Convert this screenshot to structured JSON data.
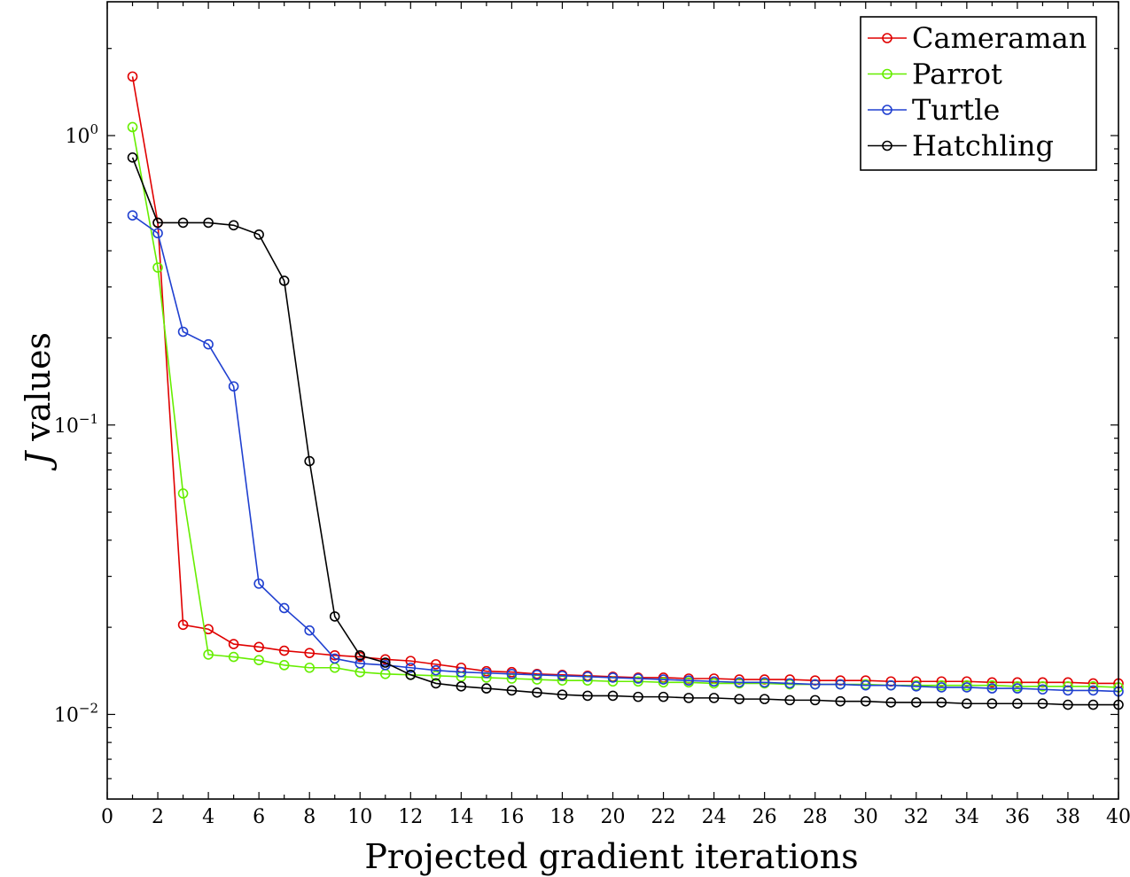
{
  "chart_data": {
    "type": "line",
    "xlabel": "Projected gradient iterations",
    "ylabel_var": "J",
    "ylabel_rest": " values",
    "xlim": [
      0,
      40
    ],
    "ylim": [
      0.0051,
      2.9
    ],
    "yscale": "log",
    "grid": false,
    "legend_position": "top-right",
    "x_ticks": [
      0,
      2,
      4,
      6,
      8,
      10,
      12,
      14,
      16,
      18,
      20,
      22,
      24,
      26,
      28,
      30,
      32,
      34,
      36,
      38,
      40
    ],
    "y_ticks": [
      {
        "value": 1,
        "base": "10",
        "exp": "0"
      },
      {
        "value": 0.1,
        "base": "10",
        "exp": "−1"
      },
      {
        "value": 0.01,
        "base": "10",
        "exp": "−2"
      }
    ],
    "x": [
      1,
      2,
      3,
      4,
      5,
      6,
      7,
      8,
      9,
      10,
      11,
      12,
      13,
      14,
      15,
      16,
      17,
      18,
      19,
      20,
      21,
      22,
      23,
      24,
      25,
      26,
      27,
      28,
      29,
      30,
      31,
      32,
      33,
      34,
      35,
      36,
      37,
      38,
      39,
      40
    ],
    "series": [
      {
        "name": "Cameraman",
        "color": "#e00000",
        "values": [
          1.6,
          0.5,
          0.0204,
          0.0197,
          0.0175,
          0.0171,
          0.0166,
          0.0163,
          0.016,
          0.0158,
          0.0155,
          0.0153,
          0.0149,
          0.0145,
          0.0141,
          0.014,
          0.0138,
          0.0137,
          0.0136,
          0.0135,
          0.0134,
          0.0134,
          0.0133,
          0.0133,
          0.0132,
          0.0132,
          0.0132,
          0.0131,
          0.0131,
          0.0131,
          0.013,
          0.013,
          0.013,
          0.013,
          0.0129,
          0.0129,
          0.0129,
          0.0129,
          0.0128,
          0.0128
        ]
      },
      {
        "name": "Parrot",
        "color": "#66ee00",
        "values": [
          1.07,
          0.35,
          0.058,
          0.0161,
          0.0158,
          0.0154,
          0.0148,
          0.0145,
          0.0145,
          0.014,
          0.0138,
          0.0137,
          0.0136,
          0.0135,
          0.0134,
          0.0133,
          0.0132,
          0.0131,
          0.0131,
          0.013,
          0.013,
          0.0129,
          0.0129,
          0.0128,
          0.0128,
          0.0128,
          0.0127,
          0.0127,
          0.0127,
          0.0127,
          0.0126,
          0.0126,
          0.0126,
          0.0126,
          0.0126,
          0.0125,
          0.0125,
          0.0125,
          0.0125,
          0.0124
        ]
      },
      {
        "name": "Turtle",
        "color": "#2040d0",
        "values": [
          0.53,
          0.46,
          0.21,
          0.19,
          0.136,
          0.0283,
          0.0233,
          0.0195,
          0.0156,
          0.015,
          0.0148,
          0.0145,
          0.0142,
          0.014,
          0.0139,
          0.0138,
          0.0137,
          0.0136,
          0.0135,
          0.0134,
          0.0133,
          0.0132,
          0.0131,
          0.013,
          0.0129,
          0.0129,
          0.0128,
          0.0127,
          0.0127,
          0.0126,
          0.0126,
          0.0125,
          0.0124,
          0.0124,
          0.0123,
          0.0123,
          0.0122,
          0.0121,
          0.0121,
          0.012
        ]
      },
      {
        "name": "Hatchling",
        "color": "#000000",
        "values": [
          0.84,
          0.5,
          0.5,
          0.5,
          0.49,
          0.455,
          0.315,
          0.075,
          0.0218,
          0.016,
          0.0151,
          0.0137,
          0.0128,
          0.0125,
          0.0123,
          0.0121,
          0.0119,
          0.0117,
          0.0116,
          0.0116,
          0.0115,
          0.0115,
          0.0114,
          0.0114,
          0.0113,
          0.0113,
          0.0112,
          0.0112,
          0.0111,
          0.0111,
          0.011,
          0.011,
          0.011,
          0.0109,
          0.0109,
          0.0109,
          0.0109,
          0.0108,
          0.0108,
          0.0108
        ]
      }
    ]
  }
}
